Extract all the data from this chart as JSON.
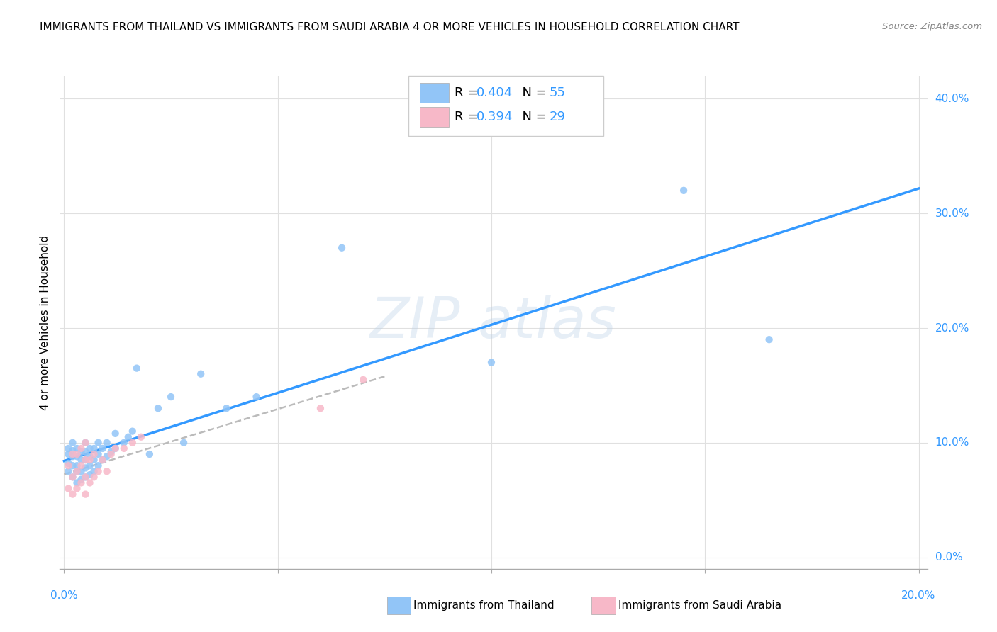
{
  "title": "IMMIGRANTS FROM THAILAND VS IMMIGRANTS FROM SAUDI ARABIA 4 OR MORE VEHICLES IN HOUSEHOLD CORRELATION CHART",
  "source": "Source: ZipAtlas.com",
  "ylabel": "4 or more Vehicles in Household",
  "color_thailand": "#92c5f7",
  "color_saudi": "#f7b8c8",
  "trendline_thailand_color": "#3399ff",
  "trendline_saudi_color": "#bbbbbb",
  "xlim": [
    -0.001,
    0.202
  ],
  "ylim": [
    -0.01,
    0.42
  ],
  "ytick_vals": [
    0.0,
    0.1,
    0.2,
    0.3,
    0.4
  ],
  "ytick_labels": [
    "0.0%",
    "10.0%",
    "20.0%",
    "30.0%",
    "40.0%"
  ],
  "xtick_labels_left": "0.0%",
  "xtick_labels_right": "20.0%",
  "r_thailand": 0.404,
  "n_thailand": 55,
  "r_saudi": 0.394,
  "n_saudi": 29,
  "thailand_x": [
    0.001,
    0.001,
    0.001,
    0.001,
    0.002,
    0.002,
    0.002,
    0.002,
    0.002,
    0.003,
    0.003,
    0.003,
    0.003,
    0.003,
    0.004,
    0.004,
    0.004,
    0.004,
    0.005,
    0.005,
    0.005,
    0.005,
    0.005,
    0.006,
    0.006,
    0.006,
    0.006,
    0.007,
    0.007,
    0.007,
    0.008,
    0.008,
    0.008,
    0.009,
    0.009,
    0.01,
    0.01,
    0.011,
    0.012,
    0.012,
    0.014,
    0.015,
    0.016,
    0.017,
    0.02,
    0.022,
    0.025,
    0.028,
    0.032,
    0.038,
    0.045,
    0.065,
    0.1,
    0.145,
    0.165
  ],
  "thailand_y": [
    0.075,
    0.082,
    0.09,
    0.095,
    0.07,
    0.08,
    0.088,
    0.093,
    0.1,
    0.065,
    0.075,
    0.08,
    0.088,
    0.095,
    0.068,
    0.075,
    0.085,
    0.092,
    0.07,
    0.078,
    0.085,
    0.092,
    0.1,
    0.072,
    0.08,
    0.088,
    0.095,
    0.075,
    0.085,
    0.095,
    0.08,
    0.09,
    0.1,
    0.085,
    0.095,
    0.088,
    0.1,
    0.092,
    0.095,
    0.108,
    0.1,
    0.105,
    0.11,
    0.165,
    0.09,
    0.13,
    0.14,
    0.1,
    0.16,
    0.13,
    0.14,
    0.27,
    0.17,
    0.32,
    0.19
  ],
  "saudi_x": [
    0.001,
    0.001,
    0.002,
    0.002,
    0.002,
    0.003,
    0.003,
    0.003,
    0.004,
    0.004,
    0.004,
    0.005,
    0.005,
    0.005,
    0.005,
    0.006,
    0.006,
    0.007,
    0.007,
    0.008,
    0.009,
    0.01,
    0.011,
    0.012,
    0.014,
    0.016,
    0.018,
    0.06,
    0.07
  ],
  "saudi_y": [
    0.06,
    0.08,
    0.055,
    0.07,
    0.09,
    0.06,
    0.075,
    0.09,
    0.065,
    0.08,
    0.095,
    0.055,
    0.07,
    0.085,
    0.1,
    0.065,
    0.085,
    0.07,
    0.09,
    0.075,
    0.085,
    0.075,
    0.09,
    0.095,
    0.095,
    0.1,
    0.105,
    0.13,
    0.155
  ]
}
